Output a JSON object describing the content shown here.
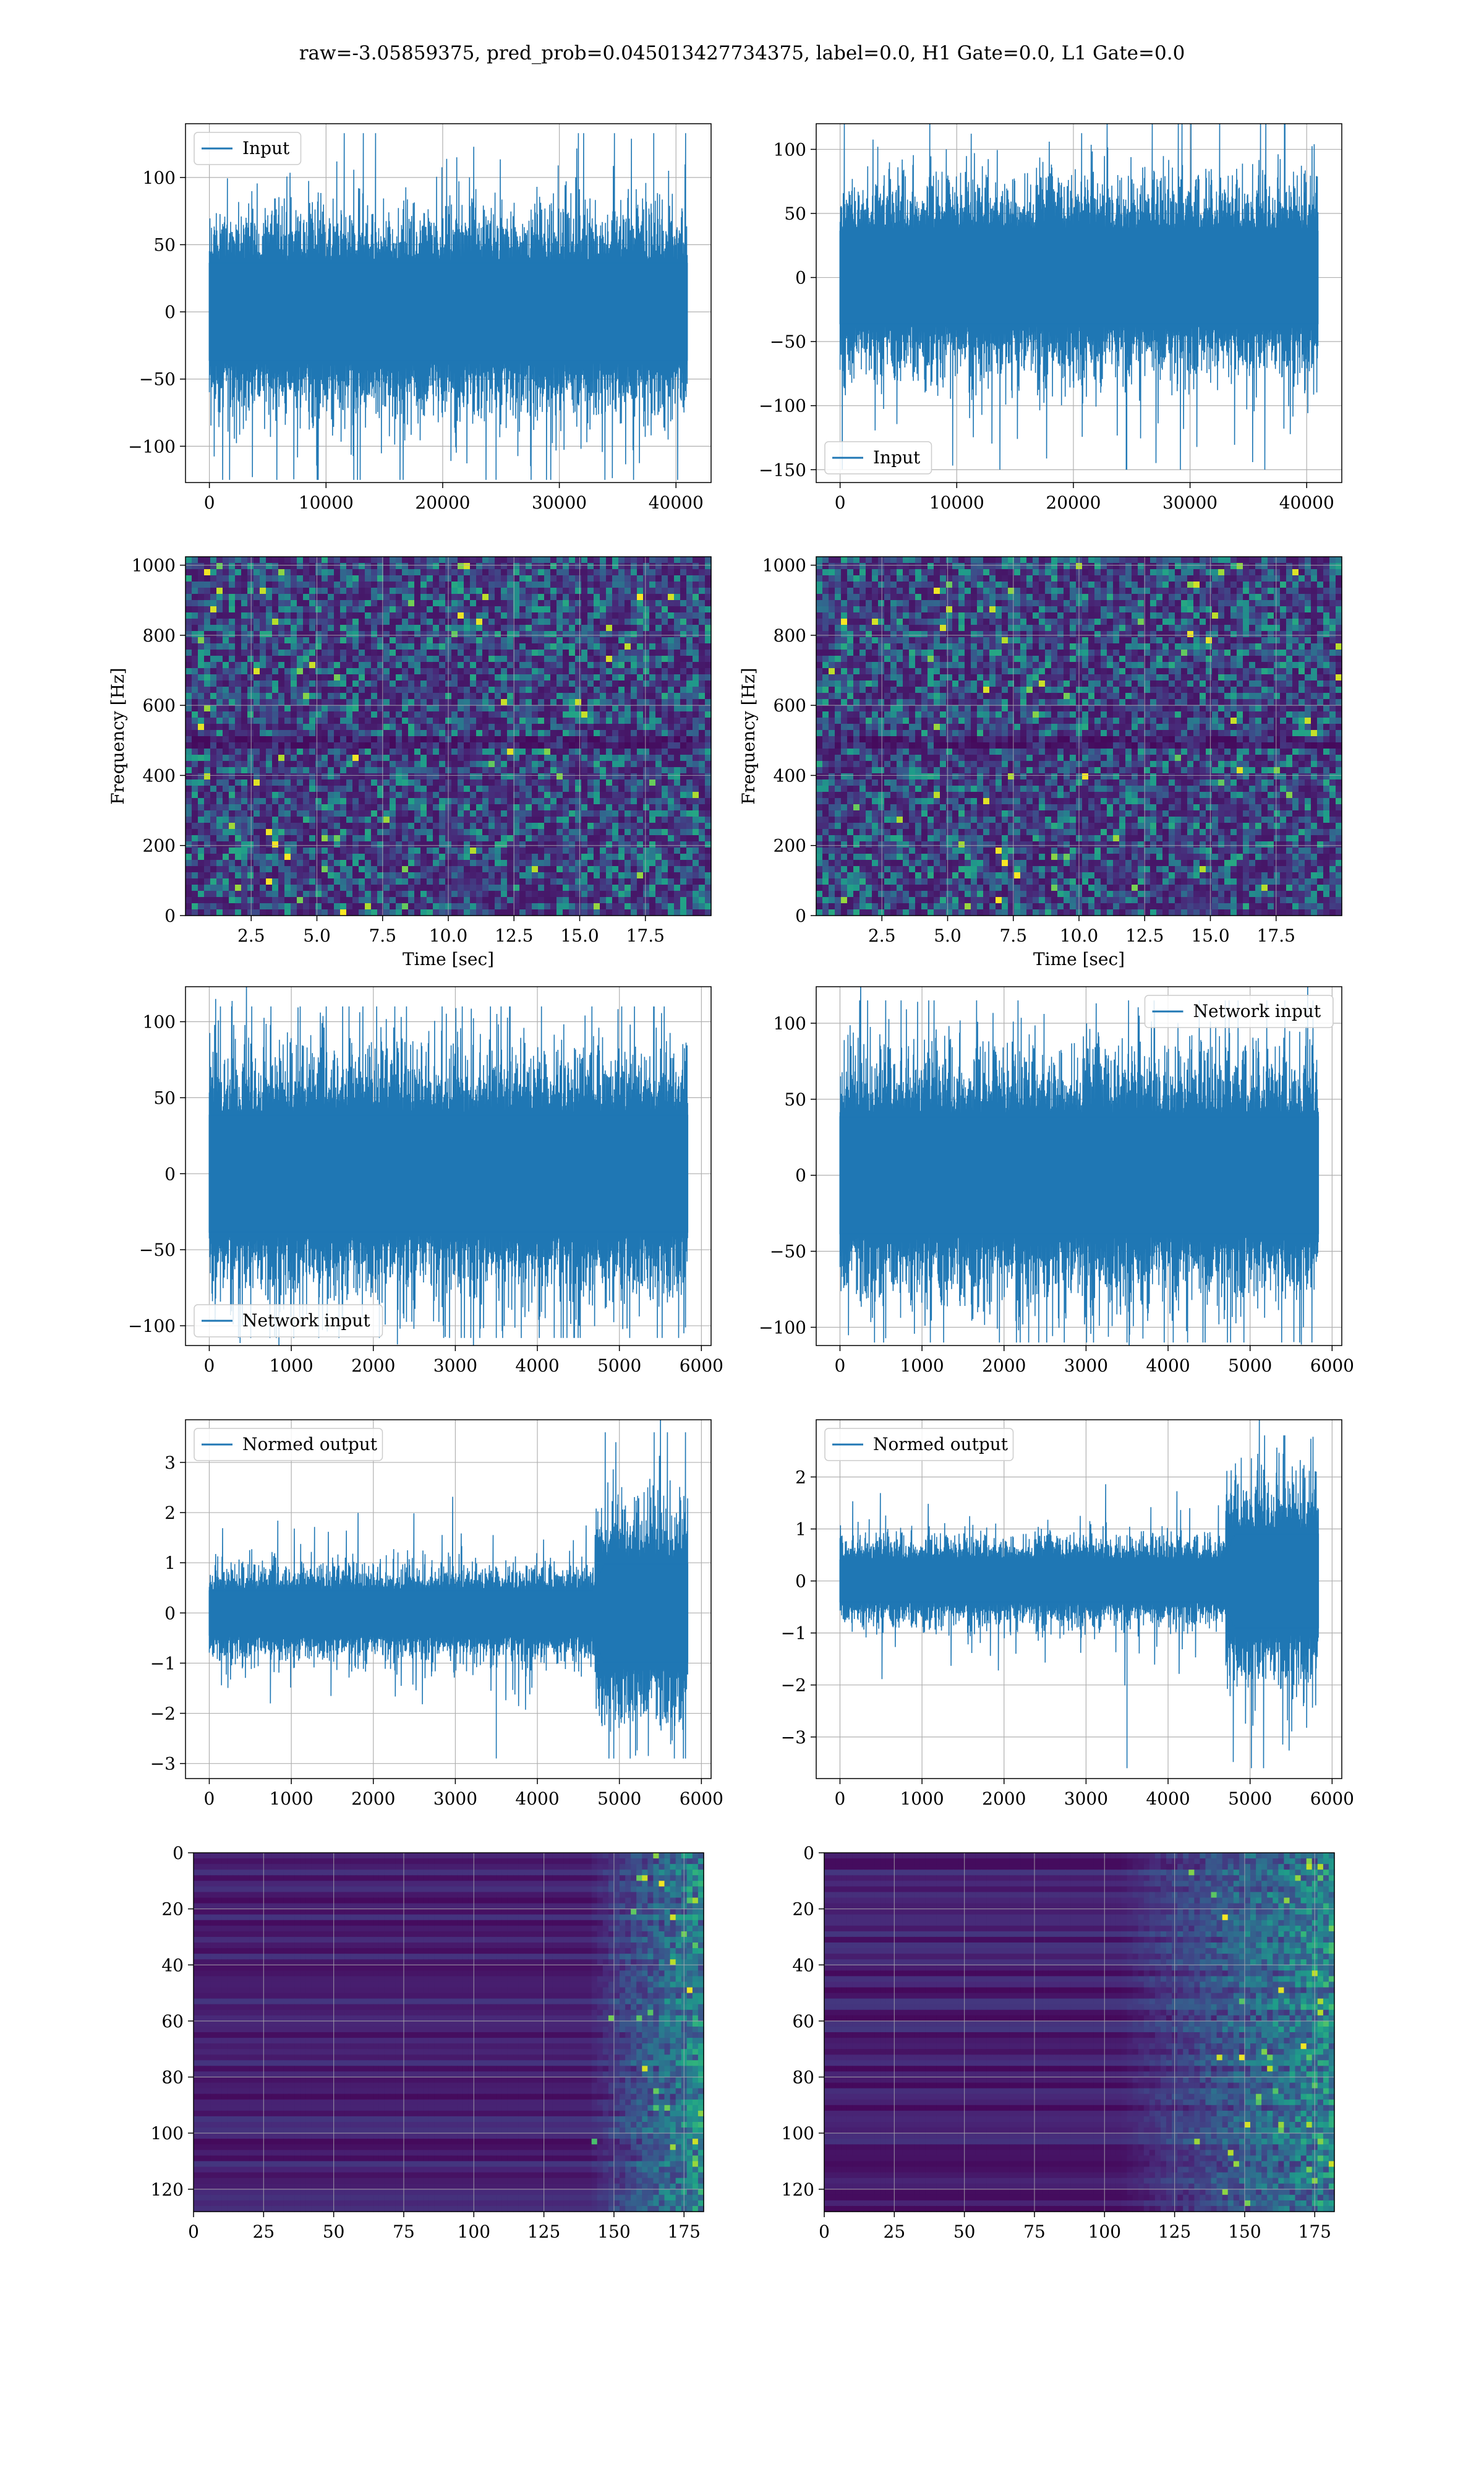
{
  "figure_title": "raw=-3.05859375, pred_prob=0.045013427734375, label=0.0, H1 Gate=0.0, L1 Gate=0.0",
  "colors": {
    "line": "#1f77b4",
    "grid": "#b0b0b0",
    "axes": "#000000"
  },
  "chart_data": [
    {
      "id": "input-h1",
      "type": "line",
      "title": "",
      "xlabel": "",
      "ylabel": "",
      "xlim": [
        -2048,
        43008
      ],
      "ylim": [
        -127,
        140
      ],
      "xticks": [
        0,
        10000,
        20000,
        30000,
        40000
      ],
      "xtick_labels": [
        "0",
        "10000",
        "20000",
        "30000",
        "40000"
      ],
      "yticks": [
        -100,
        -50,
        0,
        50,
        100
      ],
      "ytick_labels": [
        "−100",
        "−50",
        "0",
        "50",
        "100"
      ],
      "legend": {
        "label": "Input",
        "position": "upper-left"
      },
      "series": [
        {
          "name": "Input",
          "n_samples": 40960,
          "x_range": [
            0,
            40960
          ],
          "core_amplitude": [
            -45,
            45
          ],
          "peak_range": [
            -125,
            133
          ]
        }
      ],
      "grid": true
    },
    {
      "id": "input-l1",
      "type": "line",
      "title": "",
      "xlabel": "",
      "ylabel": "",
      "xlim": [
        -2048,
        43008
      ],
      "ylim": [
        -160,
        120
      ],
      "xticks": [
        0,
        10000,
        20000,
        30000,
        40000
      ],
      "xtick_labels": [
        "0",
        "10000",
        "20000",
        "30000",
        "40000"
      ],
      "yticks": [
        -150,
        -100,
        -50,
        0,
        50,
        100
      ],
      "ytick_labels": [
        "−150",
        "−100",
        "−50",
        "0",
        "50",
        "100"
      ],
      "legend": {
        "label": "Input",
        "position": "lower-left"
      },
      "series": [
        {
          "name": "Input",
          "n_samples": 40960,
          "x_range": [
            0,
            40960
          ],
          "core_amplitude": [
            -45,
            45
          ],
          "peak_range": [
            -150,
            120
          ]
        }
      ],
      "grid": true
    },
    {
      "id": "spectrogram-h1",
      "type": "heatmap",
      "title": "",
      "xlabel": "Time [sec]",
      "ylabel": "Frequency [Hz]",
      "xlim": [
        0,
        20
      ],
      "ylim": [
        0,
        1024
      ],
      "xticks": [
        2.5,
        5.0,
        7.5,
        10.0,
        12.5,
        15.0,
        17.5
      ],
      "xtick_labels": [
        "2.5",
        "5.0",
        "7.5",
        "10.0",
        "12.5",
        "15.0",
        "17.5"
      ],
      "yticks": [
        0,
        200,
        400,
        600,
        800,
        1000
      ],
      "ytick_labels": [
        "0",
        "200",
        "400",
        "600",
        "800",
        "1000"
      ],
      "colormap": "viridis",
      "grid": true
    },
    {
      "id": "spectrogram-l1",
      "type": "heatmap",
      "title": "",
      "xlabel": "Time [sec]",
      "ylabel": "Frequency [Hz]",
      "xlim": [
        0,
        20
      ],
      "ylim": [
        0,
        1024
      ],
      "xticks": [
        2.5,
        5.0,
        7.5,
        10.0,
        12.5,
        15.0,
        17.5
      ],
      "xtick_labels": [
        "2.5",
        "5.0",
        "7.5",
        "10.0",
        "12.5",
        "15.0",
        "17.5"
      ],
      "yticks": [
        0,
        200,
        400,
        600,
        800,
        1000
      ],
      "ytick_labels": [
        "0",
        "200",
        "400",
        "600",
        "800",
        "1000"
      ],
      "colormap": "viridis",
      "grid": true
    },
    {
      "id": "network-input-h1",
      "type": "line",
      "title": "",
      "xlabel": "",
      "ylabel": "",
      "xlim": [
        -290,
        6118
      ],
      "ylim": [
        -113,
        123
      ],
      "xticks": [
        0,
        1000,
        2000,
        3000,
        4000,
        5000,
        6000
      ],
      "xtick_labels": [
        "0",
        "1000",
        "2000",
        "3000",
        "4000",
        "5000",
        "6000"
      ],
      "yticks": [
        -100,
        -50,
        0,
        50,
        100
      ],
      "ytick_labels": [
        "−100",
        "−50",
        "0",
        "50",
        "100"
      ],
      "legend": {
        "label": "Network input",
        "position": "lower-left"
      },
      "series": [
        {
          "name": "Network input",
          "n_samples": 5832,
          "x_range": [
            0,
            5832
          ],
          "core_amplitude": [
            -48,
            48
          ],
          "peak_range": [
            -108,
            110
          ]
        }
      ],
      "grid": true
    },
    {
      "id": "network-input-l1",
      "type": "line",
      "title": "",
      "xlabel": "",
      "ylabel": "",
      "xlim": [
        -290,
        6118
      ],
      "ylim": [
        -112,
        124
      ],
      "xticks": [
        0,
        1000,
        2000,
        3000,
        4000,
        5000,
        6000
      ],
      "xtick_labels": [
        "0",
        "1000",
        "2000",
        "3000",
        "4000",
        "5000",
        "6000"
      ],
      "yticks": [
        -100,
        -50,
        0,
        50,
        100
      ],
      "ytick_labels": [
        "−100",
        "−50",
        "0",
        "50",
        "100"
      ],
      "legend": {
        "label": "Network input",
        "position": "upper-right"
      },
      "series": [
        {
          "name": "Network input",
          "n_samples": 5832,
          "x_range": [
            0,
            5832
          ],
          "core_amplitude": [
            -48,
            48
          ],
          "peak_range": [
            -110,
            115
          ]
        }
      ],
      "grid": true
    },
    {
      "id": "normed-output-h1",
      "type": "line",
      "title": "",
      "xlabel": "",
      "ylabel": "",
      "xlim": [
        -290,
        6118
      ],
      "ylim": [
        -3.3,
        3.85
      ],
      "xticks": [
        0,
        1000,
        2000,
        3000,
        4000,
        5000,
        6000
      ],
      "xtick_labels": [
        "0",
        "1000",
        "2000",
        "3000",
        "4000",
        "5000",
        "6000"
      ],
      "yticks": [
        -3,
        -2,
        -1,
        0,
        1,
        2,
        3
      ],
      "ytick_labels": [
        "−3",
        "−2",
        "−1",
        "0",
        "1",
        "2",
        "3"
      ],
      "legend": {
        "label": "Normed output",
        "position": "upper-left"
      },
      "series": [
        {
          "name": "Normed output",
          "n_samples": 5832,
          "x_range": [
            0,
            5832
          ],
          "core_amplitude": [
            -0.55,
            0.55
          ],
          "burst_start": 4700,
          "burst_core_amplitude": [
            -1.3,
            1.3
          ],
          "peak_range": [
            -2.9,
            3.6
          ]
        }
      ],
      "grid": true
    },
    {
      "id": "normed-output-l1",
      "type": "line",
      "title": "",
      "xlabel": "",
      "ylabel": "",
      "xlim": [
        -290,
        6118
      ],
      "ylim": [
        -3.8,
        3.1
      ],
      "xticks": [
        0,
        1000,
        2000,
        3000,
        4000,
        5000,
        6000
      ],
      "xtick_labels": [
        "0",
        "1000",
        "2000",
        "3000",
        "4000",
        "5000",
        "6000"
      ],
      "yticks": [
        -3,
        -2,
        -1,
        0,
        1,
        2
      ],
      "ytick_labels": [
        "−3",
        "−2",
        "−1",
        "0",
        "1",
        "2"
      ],
      "legend": {
        "label": "Normed output",
        "position": "upper-left"
      },
      "series": [
        {
          "name": "Normed output",
          "n_samples": 5832,
          "x_range": [
            0,
            5832
          ],
          "core_amplitude": [
            -0.5,
            0.5
          ],
          "burst_start": 4700,
          "burst_core_amplitude": [
            -1.2,
            1.2
          ],
          "peak_range": [
            -3.6,
            2.8
          ]
        }
      ],
      "grid": true
    },
    {
      "id": "feature-map-h1",
      "type": "heatmap",
      "title": "",
      "xlabel": "",
      "ylabel": "",
      "xlim": [
        0,
        182
      ],
      "ylim": [
        128,
        0
      ],
      "xticks": [
        0,
        25,
        50,
        75,
        100,
        125,
        150,
        175
      ],
      "xtick_labels": [
        "0",
        "25",
        "50",
        "75",
        "100",
        "125",
        "150",
        "175"
      ],
      "yticks": [
        0,
        20,
        40,
        60,
        80,
        100,
        120
      ],
      "ytick_labels": [
        "0",
        "20",
        "40",
        "60",
        "80",
        "100",
        "120"
      ],
      "colormap": "viridis",
      "active_columns_from": 140,
      "grid": true
    },
    {
      "id": "feature-map-l1",
      "type": "heatmap",
      "title": "",
      "xlabel": "",
      "ylabel": "",
      "xlim": [
        0,
        182
      ],
      "ylim": [
        128,
        0
      ],
      "xticks": [
        0,
        25,
        50,
        75,
        100,
        125,
        150,
        175
      ],
      "xtick_labels": [
        "0",
        "25",
        "50",
        "75",
        "100",
        "125",
        "150",
        "175"
      ],
      "yticks": [
        0,
        20,
        40,
        60,
        80,
        100,
        120
      ],
      "ytick_labels": [
        "0",
        "20",
        "40",
        "60",
        "80",
        "100",
        "120"
      ],
      "colormap": "viridis",
      "active_columns_from": 105,
      "grid": true
    }
  ]
}
